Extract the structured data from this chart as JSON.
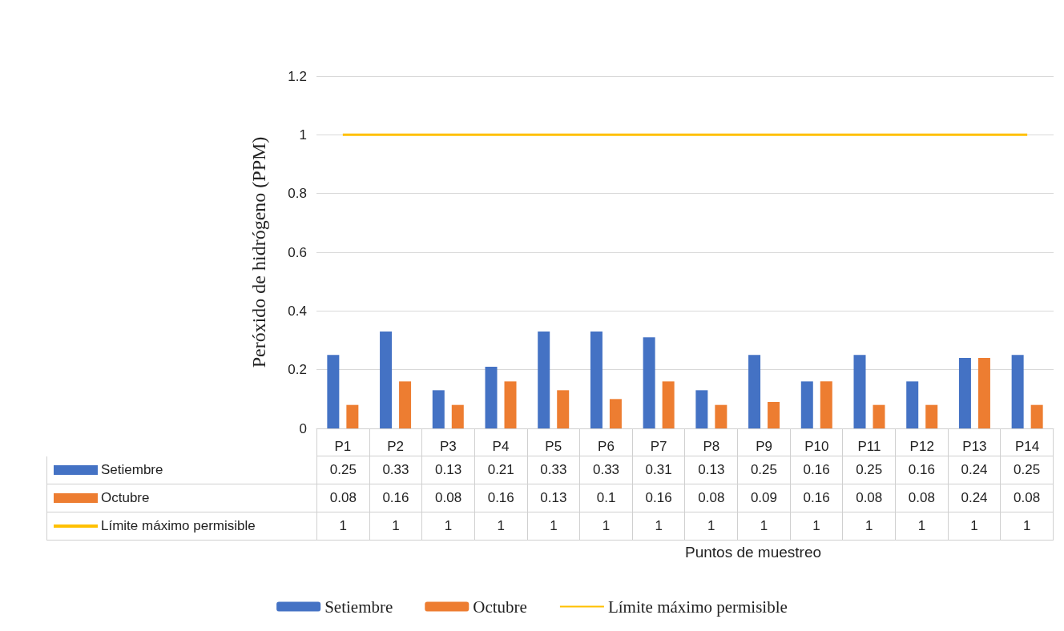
{
  "chart_data": {
    "type": "bar",
    "annotations": [
      "Puntos de muestreo"
    ],
    "ylabel": "Peróxido de hidrógeno (PPM)",
    "categories": [
      "P1",
      "P2",
      "P3",
      "P4",
      "P5",
      "P6",
      "P7",
      "P8",
      "P9",
      "P10",
      "P11",
      "P12",
      "P13",
      "P14"
    ],
    "series": [
      {
        "name": "Setiembre",
        "color": "#4472c4",
        "values": [
          0.25,
          0.33,
          0.13,
          0.21,
          0.33,
          0.33,
          0.31,
          0.13,
          0.25,
          0.16,
          0.25,
          0.16,
          0.24,
          0.25
        ]
      },
      {
        "name": "Octubre",
        "color": "#ed7d31",
        "values": [
          0.08,
          0.16,
          0.08,
          0.16,
          0.13,
          0.1,
          0.16,
          0.08,
          0.09,
          0.16,
          0.08,
          0.08,
          0.24,
          0.08
        ]
      },
      {
        "name": "Límite máximo permisible",
        "type": "line",
        "color": "#ffc000",
        "values": [
          1,
          1,
          1,
          1,
          1,
          1,
          1,
          1,
          1,
          1,
          1,
          1,
          1,
          1
        ]
      }
    ],
    "ylim": [
      0,
      1.2
    ],
    "yticks": [
      0,
      0.2,
      0.4,
      0.6,
      0.8,
      1,
      1.2
    ],
    "grid": "y",
    "legend": "bottom",
    "data_labels": true,
    "marker": "none"
  }
}
